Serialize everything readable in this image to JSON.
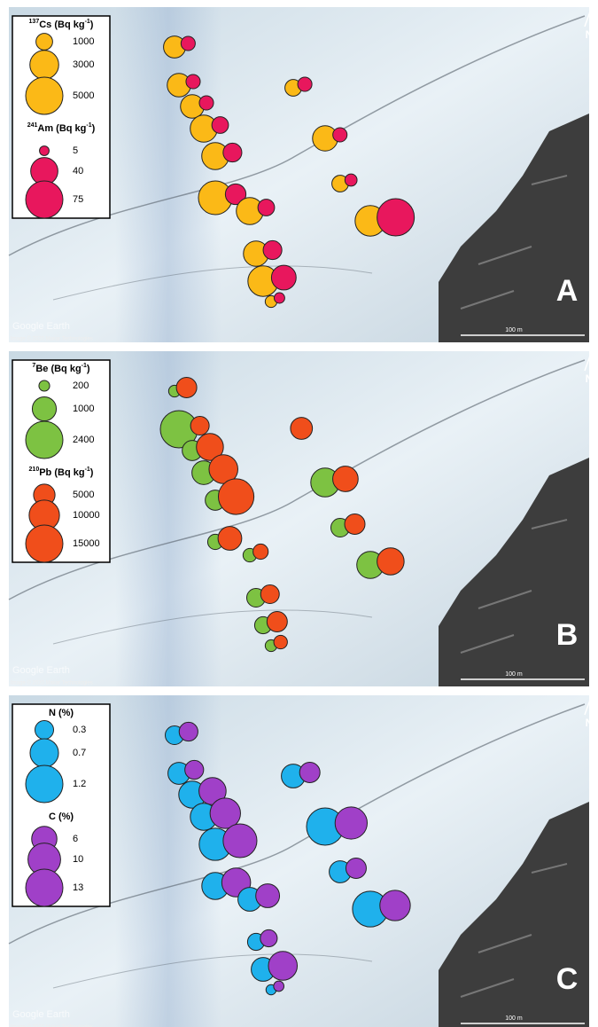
{
  "watermark": "Google Earth",
  "credit": "Image © 2020 Maxar Technologies",
  "scale": "100 m",
  "north": "N",
  "panels": [
    {
      "letter": "A",
      "series": [
        {
          "title": [
            {
              "text": "137",
              "sup": true
            },
            {
              "text": "Cs (Bq kg"
            },
            {
              "text": "-1",
              "sup": true
            },
            {
              "text": ")"
            }
          ],
          "color": "#fbb917",
          "legend_values": [
            1000,
            3000,
            5000
          ],
          "values": [
            1750,
            2000,
            2000,
            2650,
            2650,
            4100,
            2650,
            1000,
            2300,
            1000,
            3350,
            2300,
            3350,
            500
          ]
        },
        {
          "title": [
            {
              "text": "241",
              "sup": true
            },
            {
              "text": "Am (Bq kg"
            },
            {
              "text": "-1",
              "sup": true
            },
            {
              "text": ")"
            }
          ],
          "color": "#e8175d",
          "legend_values": [
            5,
            40,
            75
          ],
          "values": [
            11,
            11,
            11,
            15,
            19,
            23,
            15,
            11,
            11,
            8,
            75,
            19,
            33,
            6
          ]
        }
      ]
    },
    {
      "letter": "B",
      "series": [
        {
          "title": [
            {
              "text": "7",
              "sup": true
            },
            {
              "text": "Be (Bq kg"
            },
            {
              "text": "-1",
              "sup": true
            },
            {
              "text": ")"
            }
          ],
          "color": "#7dc242",
          "legend_values": [
            200,
            1000,
            2400
          ],
          "values": [
            240,
            2400,
            700,
            970,
            700,
            400,
            320,
            null,
            1430,
            600,
            1270,
            600,
            500,
            240
          ]
        },
        {
          "title": [
            {
              "text": "210",
              "sup": true
            },
            {
              "text": "Pb (Bq kg"
            },
            {
              "text": "-1",
              "sup": true
            },
            {
              "text": ")"
            }
          ],
          "color": "#f04e1b",
          "legend_values": [
            5000,
            10000,
            15000
          ],
          "values": [
            4500,
            3750,
            7900,
            9000,
            13700,
            6100,
            2500,
            5200,
            7000,
            4500,
            7900,
            3750,
            4500,
            2000
          ]
        }
      ]
    },
    {
      "letter": "C",
      "series": [
        {
          "title": [
            {
              "text": "N (%)"
            }
          ],
          "color": "#1fb1ec",
          "legend_values": [
            0.3,
            0.7,
            1.2
          ],
          "values": [
            0.3,
            0.42,
            0.63,
            0.63,
            0.9,
            0.63,
            0.49,
            0.49,
            1.2,
            0.42,
            1.1,
            0.25,
            0.49,
            0.09
          ]
        },
        {
          "title": [
            {
              "text": "C (%)"
            }
          ],
          "color": "#a040c8",
          "legend_values": [
            6,
            10,
            13
          ],
          "values": [
            3.3,
            3.3,
            6.9,
            8.7,
            10.7,
            7.8,
            5.3,
            3.9,
            9.7,
            3.9,
            8.7,
            2.7,
            7.8,
            1.0
          ]
        }
      ]
    }
  ]
}
